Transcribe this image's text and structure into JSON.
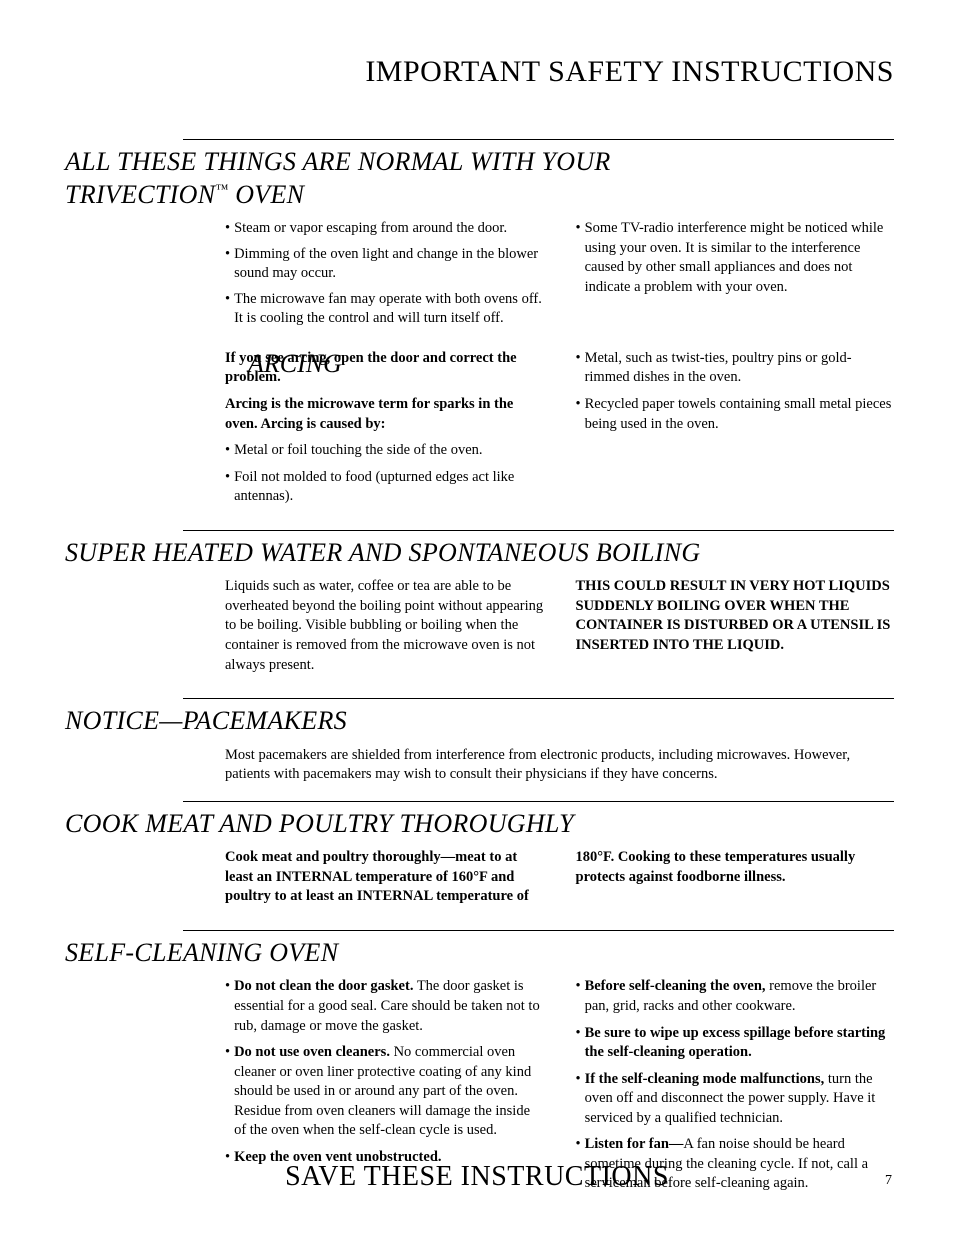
{
  "page_title": "IMPORTANT SAFETY INSTRUCTIONS",
  "footer_text": "SAVE THESE INSTRUCTIONS",
  "page_number": "7",
  "normal": {
    "title_a": "ALL THESE THINGS ARE NORMAL WITH YOUR",
    "title_b": "TRIVECTION",
    "tm": "™",
    "title_c": " OVEN",
    "left": [
      "Steam or vapor escaping from around the door.",
      "Dimming of the oven light and change in the blower sound may occur.",
      "The microwave fan may operate with both ovens off. It is cooling the control and will turn itself off."
    ],
    "right": [
      "Some TV-radio interference might be noticed while using your oven. It is similar to the interference caused by other small appliances and does not indicate a problem with your oven."
    ]
  },
  "arcing": {
    "heading": "ARCING",
    "intro_bold": "If you see arcing, open the door and correct the problem.",
    "cause_bold": "Arcing is the microwave term for sparks in the oven. Arcing is caused by:",
    "left": [
      "Metal or foil touching the side of the oven.",
      "Foil not molded to food (upturned edges act like antennas)."
    ],
    "right": [
      "Metal, such as twist-ties, poultry pins or gold-rimmed dishes in the oven.",
      "Recycled paper towels containing small metal pieces being used in the oven."
    ]
  },
  "superheat": {
    "title": "SUPER HEATED WATER AND SPONTANEOUS BOILING",
    "left": "Liquids such as water, coffee or tea are able to be overheated beyond the boiling point without appearing to be boiling. Visible bubbling or boiling when the container is removed from the microwave oven is not always present.",
    "right": "THIS COULD RESULT IN VERY HOT LIQUIDS SUDDENLY BOILING OVER WHEN THE CONTAINER IS DISTURBED OR A UTENSIL IS INSERTED INTO THE LIQUID."
  },
  "pacemakers": {
    "title": "NOTICE—PACEMAKERS",
    "body": "Most pacemakers are shielded from interference from electronic products, including microwaves. However, patients with pacemakers may wish to consult their physicians if they have concerns."
  },
  "cook": {
    "title": "COOK MEAT AND POULTRY THOROUGHLY",
    "left": "Cook meat and poultry thoroughly—meat to at least an INTERNAL temperature of 160°F and poultry to at least an INTERNAL temperature of",
    "right": "180°F. Cooking to these temperatures usually protects against foodborne illness."
  },
  "selfclean": {
    "title": "SELF-CLEANING OVEN",
    "left": [
      {
        "lead": "Do not clean the door gasket.",
        "rest": " The door gasket is essential for a good seal. Care should be taken not to rub, damage or move the gasket."
      },
      {
        "lead": "Do not use oven cleaners.",
        "rest": " No commercial oven cleaner or oven liner protective coating of any kind should be used in or around any part of the oven. Residue from oven cleaners will damage the inside of the oven when the self-clean cycle is used."
      },
      {
        "lead": "Keep the oven vent unobstructed.",
        "rest": ""
      }
    ],
    "right": [
      {
        "lead": "Before self-cleaning the oven,",
        "rest": " remove the broiler pan, grid, racks and other cookware."
      },
      {
        "lead": "Be sure to wipe up excess spillage before starting the self-cleaning operation.",
        "rest": ""
      },
      {
        "lead": "If the self-cleaning mode malfunctions,",
        "rest": " turn the oven off and disconnect the power supply. Have it serviced by a qualified technician."
      },
      {
        "lead": "Listen for fan—",
        "rest": "A fan noise should be heard sometime during the cleaning cycle. If not, call a serviceman before self-cleaning again."
      }
    ]
  }
}
